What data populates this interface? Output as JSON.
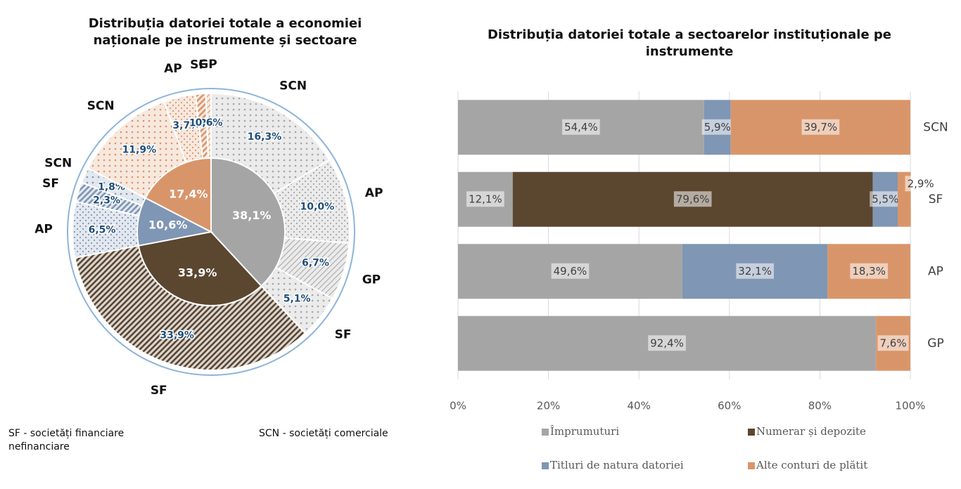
{
  "chart_data": [
    {
      "type": "sunburst",
      "title": "Distribuția datoriei totale a economiei naționale  pe instrumente și sectoare",
      "inner": {
        "values": [
          38.1,
          33.9,
          10.6,
          17.4
        ],
        "value_labels": [
          "38,1%",
          "33,9%",
          "10,6%",
          "17,4%"
        ],
        "colors": [
          "#a5a5a5",
          "#5b4630",
          "#7f96b4",
          "#d9956a"
        ]
      },
      "outer": {
        "categories": [
          "SCN",
          "AP",
          "GP",
          "SF",
          "SF",
          "AP",
          "SF",
          "SCN",
          "SCN",
          "AP",
          "SF",
          "GP"
        ],
        "values": [
          16.3,
          10.0,
          6.7,
          5.1,
          33.9,
          6.5,
          2.3,
          1.8,
          11.9,
          3.7,
          1.2,
          0.6
        ],
        "value_labels": [
          "16,3%",
          "10,0%",
          "6,7%",
          "5,1%",
          "33,9%",
          "6,5%",
          "2,3%",
          "1,8%",
          "11,9%",
          "3,7%",
          "1,2%",
          "0,6%"
        ],
        "colors": [
          "#a5a5a5",
          "#a5a5a5",
          "#a5a5a5",
          "#a5a5a5",
          "#5b4630",
          "#7f96b4",
          "#7f96b4",
          "#7f96b4",
          "#d9956a",
          "#d9956a",
          "#d9956a",
          "#d9956a"
        ],
        "patterns": [
          "dots",
          "checks",
          "hatch",
          "dots",
          "stripes",
          "checks",
          "stripes",
          "dots",
          "dots",
          "checks",
          "stripes",
          "hatch"
        ]
      },
      "notes": [
        "SF - societăți financiare nefinanciare",
        "SCN - societăți comerciale"
      ]
    },
    {
      "type": "stacked-barh",
      "title": "Distribuția datoriei totale a sectoarelor instituționale pe instrumente",
      "categories": [
        "SCN",
        "SF",
        "AP",
        "GP"
      ],
      "series": [
        {
          "name": "Împrumuturi",
          "color": "#a5a5a5",
          "values": [
            54.4,
            12.1,
            49.6,
            92.4
          ],
          "value_labels": [
            "54,4%",
            "12,1%",
            "49,6%",
            "92,4%"
          ]
        },
        {
          "name": "Numerar și depozite",
          "color": "#5b4630",
          "values": [
            null,
            79.6,
            null,
            null
          ],
          "value_labels": [
            null,
            "79,6%",
            null,
            null
          ]
        },
        {
          "name": "Titluri de natura datoriei",
          "color": "#7f96b4",
          "values": [
            5.9,
            5.5,
            32.1,
            null
          ],
          "value_labels": [
            "5,9%",
            "5,5%",
            "32,1%",
            null
          ]
        },
        {
          "name": "Alte conturi de plătit",
          "color": "#d9956a",
          "values": [
            39.7,
            2.9,
            18.3,
            7.6
          ],
          "value_labels": [
            "39,7%",
            "2,9%",
            "18,3%",
            "7,6%"
          ]
        }
      ],
      "xlim": [
        0,
        100
      ],
      "xticks": [
        {
          "value": 0,
          "label": "0%"
        },
        {
          "value": 20,
          "label": "20%"
        },
        {
          "value": 40,
          "label": "40%"
        },
        {
          "value": 60,
          "label": "60%"
        },
        {
          "value": 80,
          "label": "80%"
        },
        {
          "value": 100,
          "label": "100%"
        }
      ],
      "grid": true
    }
  ]
}
